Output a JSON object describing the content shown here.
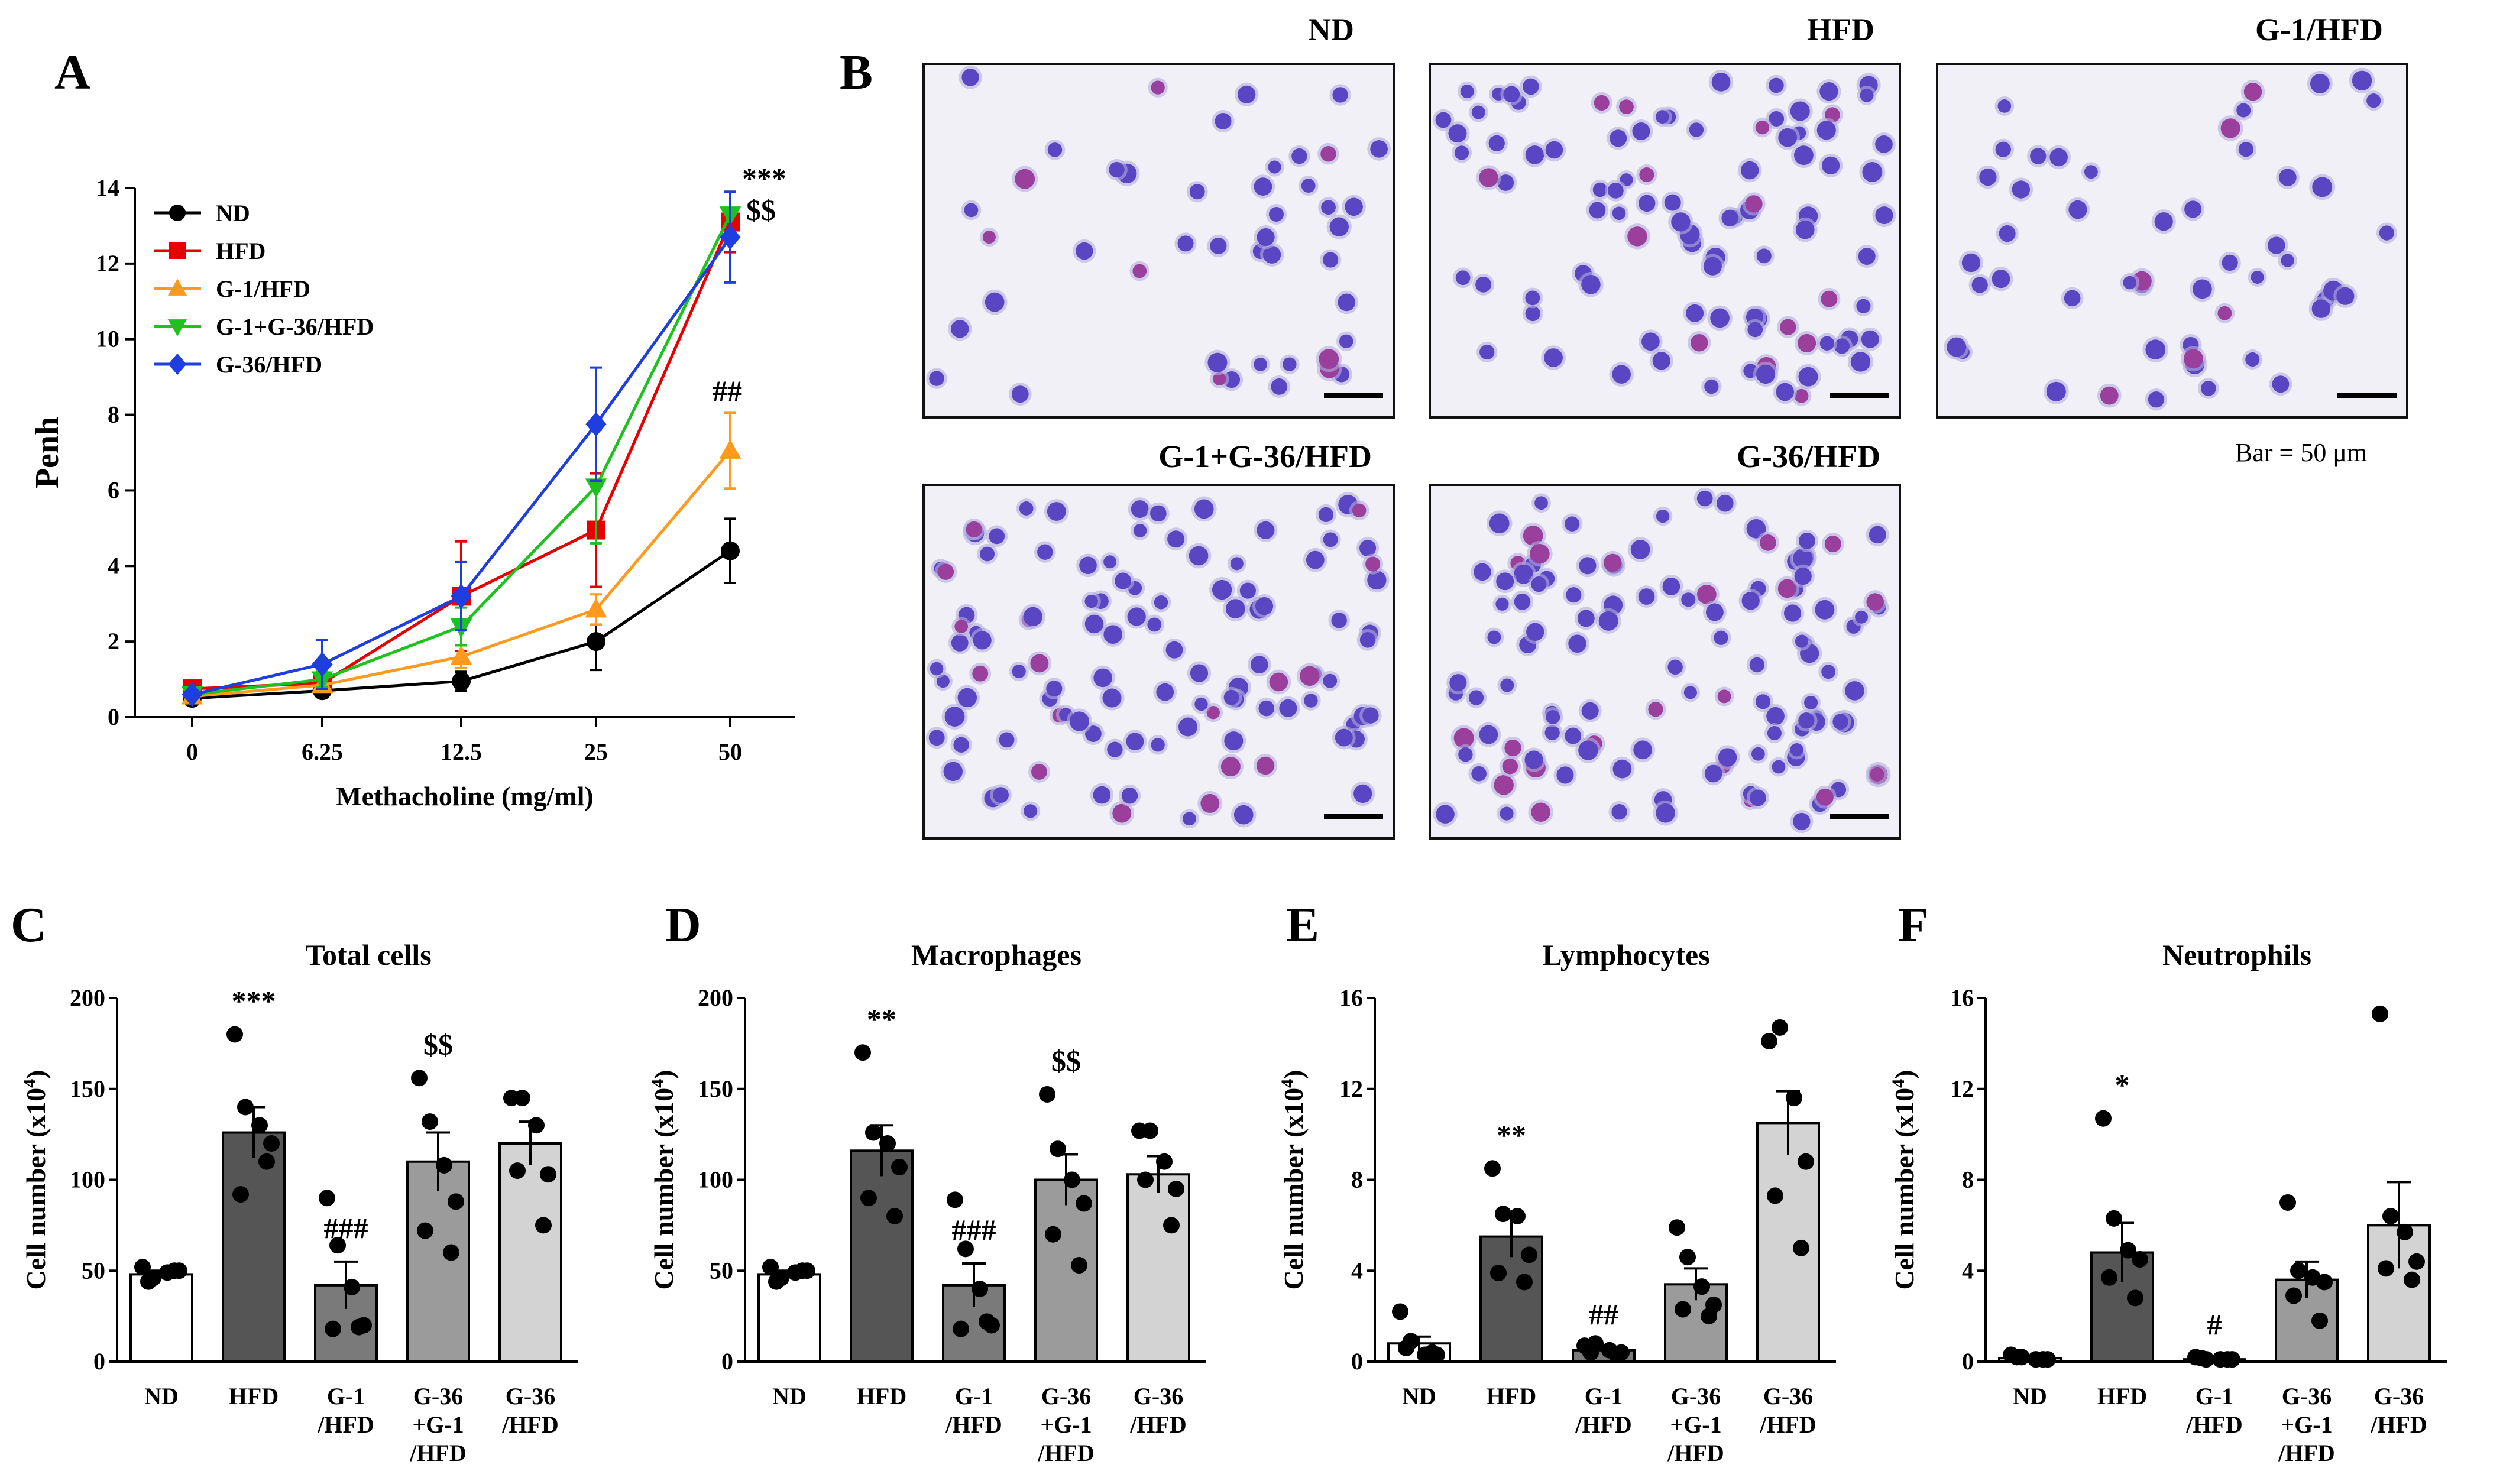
{
  "panel_letters": [
    "A",
    "B",
    "C",
    "D",
    "E",
    "F"
  ],
  "colors": {
    "ND": "#000000",
    "HFD": "#e60000",
    "G1HFD": "#ff9a1f",
    "G136HFD": "#1ec21e",
    "G36HFD": "#1f3ee0",
    "bar_ND": "#ffffff",
    "bar_HFD": "#555555",
    "bar_G1": "#7a7a7a",
    "bar_G36G1": "#9b9b9b",
    "bar_G36": "#d3d3d3"
  },
  "micrographs": {
    "labels": [
      "ND",
      "HFD",
      "G-1/HFD",
      "G-1+G-36/HFD",
      "G-36/HFD"
    ],
    "scale_bar_text": "Bar = 50 μm",
    "bg": "#f1f0f6",
    "cell": "#5a46c2"
  },
  "chart_data": [
    {
      "id": "A",
      "type": "line",
      "xlabel": "Methacholine (mg/ml)",
      "ylabel": "Penh",
      "categories": [
        "0",
        "6.25",
        "12.5",
        "25",
        "50"
      ],
      "ylim": [
        0,
        14
      ],
      "yticks": [
        "0",
        "2",
        "4",
        "6",
        "8",
        "10",
        "12",
        "14"
      ],
      "legend_position": "top-left",
      "series": [
        {
          "name": "ND",
          "marker": "circle",
          "color": "#000000",
          "values": [
            0.5,
            0.7,
            0.95,
            2.0,
            4.4
          ],
          "err": [
            0.1,
            0.1,
            0.25,
            0.75,
            0.85
          ]
        },
        {
          "name": "HFD",
          "marker": "square",
          "color": "#e60000",
          "values": [
            0.75,
            0.9,
            3.2,
            4.95,
            13.1
          ],
          "err": [
            0.1,
            0.2,
            1.45,
            1.5,
            0.8
          ]
        },
        {
          "name": "G-1/HFD",
          "marker": "triangle-up",
          "color": "#ff9a1f",
          "values": [
            0.55,
            0.85,
            1.6,
            2.85,
            7.05
          ],
          "err": [
            0.1,
            0.15,
            0.3,
            0.4,
            1.0
          ]
        },
        {
          "name": "G-1+G-36/HFD",
          "marker": "triangle-down",
          "color": "#1ec21e",
          "values": [
            0.6,
            1.0,
            2.4,
            6.1,
            13.3
          ],
          "err": [
            0.1,
            0.2,
            0.5,
            1.5,
            0.6
          ]
        },
        {
          "name": "G-36/HFD",
          "marker": "diamond",
          "color": "#1f3ee0",
          "values": [
            0.6,
            1.4,
            3.2,
            7.75,
            12.7
          ],
          "err": [
            0.1,
            0.65,
            0.9,
            1.5,
            1.2
          ]
        }
      ],
      "annotations": [
        "***",
        "$$",
        "##"
      ]
    },
    {
      "id": "C",
      "type": "bar",
      "title": "Total cells",
      "ylabel": "Cell number (x10",
      "ylabel_sup": "4",
      "ylim": [
        0,
        200
      ],
      "yticks": [
        "0",
        "50",
        "100",
        "150",
        "200"
      ],
      "categories": [
        [
          "ND"
        ],
        [
          "HFD"
        ],
        [
          "G-1",
          "/HFD"
        ],
        [
          "G-36",
          "+G-1",
          "/HFD"
        ],
        [
          "G-36",
          "/HFD"
        ]
      ],
      "values": [
        48,
        126,
        42,
        110,
        120
      ],
      "err": [
        2,
        14,
        13,
        16,
        12
      ],
      "points": [
        [
          52,
          46,
          49,
          50,
          44,
          50
        ],
        [
          180,
          140,
          130,
          120,
          92,
          110
        ],
        [
          90,
          64,
          41,
          20,
          18,
          19
        ],
        [
          156,
          132,
          108,
          88,
          72,
          60
        ],
        [
          145,
          145,
          130,
          103,
          105,
          75
        ]
      ],
      "annotations": [
        "",
        "***",
        "###",
        "$$",
        ""
      ]
    },
    {
      "id": "D",
      "type": "bar",
      "title": "Macrophages",
      "ylabel": "Cell number (x10",
      "ylabel_sup": "4",
      "ylim": [
        0,
        200
      ],
      "yticks": [
        "0",
        "50",
        "100",
        "150",
        "200"
      ],
      "categories": [
        [
          "ND"
        ],
        [
          "HFD"
        ],
        [
          "G-1",
          "/HFD"
        ],
        [
          "G-36",
          "+G-1",
          "/HFD"
        ],
        [
          "G-36",
          "/HFD"
        ]
      ],
      "values": [
        48,
        116,
        42,
        100,
        103
      ],
      "err": [
        2,
        14,
        12,
        14,
        10
      ],
      "points": [
        [
          52,
          46,
          49,
          50,
          44,
          50
        ],
        [
          170,
          126,
          120,
          107,
          90,
          80
        ],
        [
          89,
          62,
          40,
          20,
          18,
          22
        ],
        [
          147,
          117,
          100,
          87,
          70,
          53
        ],
        [
          127,
          127,
          110,
          95,
          100,
          75
        ]
      ],
      "annotations": [
        "",
        "**",
        "###",
        "$$",
        ""
      ]
    },
    {
      "id": "E",
      "type": "bar",
      "title": "Lymphocytes",
      "ylabel": "Cell number (x10",
      "ylabel_sup": "4",
      "ylim": [
        0,
        16
      ],
      "yticks": [
        "0",
        "4",
        "8",
        "12",
        "16"
      ],
      "categories": [
        [
          "ND"
        ],
        [
          "HFD"
        ],
        [
          "G-1",
          "/HFD"
        ],
        [
          "G-36",
          "+G-1",
          "/HFD"
        ],
        [
          "G-36",
          "/HFD"
        ]
      ],
      "values": [
        0.8,
        5.5,
        0.5,
        3.4,
        10.5
      ],
      "err": [
        0.3,
        0.9,
        0.1,
        0.7,
        1.4
      ],
      "points": [
        [
          2.2,
          0.9,
          0.3,
          0.3,
          0.6,
          0.4
        ],
        [
          8.5,
          6.5,
          6.4,
          4.7,
          3.9,
          3.5
        ],
        [
          0.7,
          0.8,
          0.5,
          0.4,
          0.4,
          0.3
        ],
        [
          5.9,
          4.6,
          3.3,
          2.5,
          2.3,
          2.0
        ],
        [
          14.1,
          14.7,
          11.6,
          8.8,
          7.3,
          5.0
        ]
      ],
      "annotations": [
        "",
        "**",
        "##",
        "",
        ""
      ]
    },
    {
      "id": "F",
      "type": "bar",
      "title": "Neutrophils",
      "ylabel": "Cell number (x10",
      "ylabel_sup": "4",
      "ylim": [
        0,
        16
      ],
      "yticks": [
        "0",
        "4",
        "8",
        "12",
        "16"
      ],
      "categories": [
        [
          "ND"
        ],
        [
          "HFD"
        ],
        [
          "G-1",
          "/HFD"
        ],
        [
          "G-36",
          "+G-1",
          "/HFD"
        ],
        [
          "G-36",
          "/HFD"
        ]
      ],
      "values": [
        0.15,
        4.8,
        0.1,
        3.6,
        6.0
      ],
      "err": [
        0.05,
        1.3,
        0.05,
        0.8,
        1.9
      ],
      "points": [
        [
          0.3,
          0.2,
          0.1,
          0.1,
          0.2,
          0.1
        ],
        [
          10.7,
          6.3,
          4.9,
          4.5,
          3.7,
          2.8
        ],
        [
          0.2,
          0.1,
          0.1,
          0.1,
          0.15,
          0.1
        ],
        [
          7.0,
          4.0,
          3.7,
          3.5,
          2.9,
          1.8
        ],
        [
          15.3,
          6.4,
          5.7,
          4.4,
          4.1,
          3.6
        ]
      ],
      "annotations": [
        "",
        "*",
        "#",
        "",
        ""
      ]
    }
  ]
}
